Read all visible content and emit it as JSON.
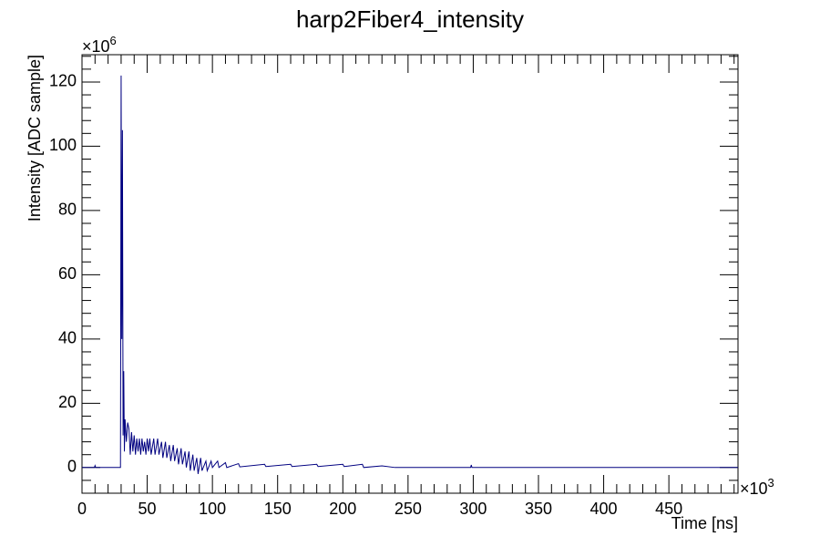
{
  "chart_data": {
    "type": "line",
    "title": "harp2Fiber4_intensity",
    "xlabel": "Time [ns]",
    "ylabel": "Intensity [ADC sample]",
    "x_multiplier": {
      "base": "×10",
      "exponent": "3"
    },
    "y_multiplier": {
      "base": "×10",
      "exponent": "6"
    },
    "xlim": [
      0,
      503
    ],
    "ylim": [
      -8,
      128.5
    ],
    "xticks": [
      0,
      50,
      100,
      150,
      200,
      250,
      300,
      350,
      400,
      450
    ],
    "yticks": [
      0,
      20,
      40,
      60,
      80,
      100,
      120
    ],
    "xminorticks": [
      10,
      20,
      30,
      40,
      60,
      70,
      80,
      90,
      110,
      120,
      130,
      140,
      160,
      170,
      180,
      190,
      210,
      220,
      230,
      240,
      260,
      270,
      280,
      290,
      310,
      320,
      330,
      340,
      360,
      370,
      380,
      390,
      410,
      420,
      430,
      440,
      460,
      470,
      480,
      490,
      500
    ],
    "yminorticks": [
      -4,
      4,
      8,
      12,
      16,
      24,
      28,
      32,
      36,
      44,
      48,
      52,
      56,
      64,
      68,
      72,
      76,
      84,
      88,
      92,
      96,
      104,
      108,
      112,
      116,
      124,
      128
    ],
    "series": [
      {
        "color": "#000080",
        "x": [
          0,
          9.5,
          10,
          10.5,
          29,
          29.5,
          30,
          30.5,
          31,
          31.5,
          32,
          32.5,
          33,
          34,
          35,
          36,
          37,
          38,
          39,
          40,
          41,
          42,
          43,
          44,
          45,
          46,
          47,
          48,
          49,
          50,
          51,
          52,
          53,
          55,
          56,
          58,
          59,
          61,
          62,
          64,
          65,
          67,
          68,
          70,
          71,
          73,
          74,
          76,
          77,
          79,
          80,
          82,
          83,
          85,
          86,
          88,
          89,
          91,
          92,
          95,
          96,
          99,
          100,
          104,
          105,
          110,
          111,
          120,
          121,
          140,
          141,
          160,
          161,
          180,
          181,
          200,
          201,
          215,
          216,
          230,
          240,
          298,
          298.5,
          299,
          503
        ],
        "values": [
          0,
          0,
          0.6,
          0,
          0,
          0,
          122,
          40,
          105,
          10,
          30,
          5,
          15,
          8,
          14,
          12,
          4,
          11,
          5,
          10,
          4,
          9,
          5,
          9,
          4,
          9,
          5,
          8,
          4,
          9,
          5,
          9,
          4,
          9,
          4,
          9,
          4,
          8,
          3,
          8,
          3,
          7,
          2,
          7,
          2,
          6,
          1,
          6,
          1,
          5,
          0,
          5,
          -1,
          4,
          -1,
          3,
          -2,
          3,
          -1,
          2,
          -1,
          2,
          0,
          2,
          0,
          1.5,
          0,
          1.2,
          0.2,
          1,
          0.3,
          1,
          0.3,
          1,
          0.3,
          1,
          0.3,
          1,
          0,
          0.5,
          0,
          0,
          0.8,
          0,
          0
        ]
      }
    ]
  }
}
